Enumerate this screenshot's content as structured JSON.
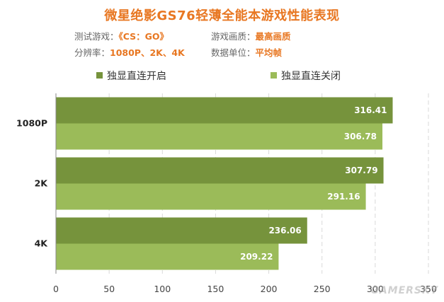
{
  "title": "微星绝影GS76轻薄全能本游戏性能表现",
  "info": {
    "game_label": "测试游戏：",
    "game_value": "《CS：GO》",
    "quality_label": "游戏画质：",
    "quality_value": "最高画质",
    "resolution_label": "分辨率：",
    "resolution_value": "1080P、2K、4K",
    "unit_label": "数据单位：",
    "unit_value": "平均帧"
  },
  "colors": {
    "on": "#76933c",
    "off": "#9bbb59",
    "accent": "#e87722"
  },
  "watermark": "GAMERSKY",
  "chart_data": {
    "type": "bar",
    "orientation": "horizontal",
    "categories": [
      "1080P",
      "2K",
      "4K"
    ],
    "series": [
      {
        "name": "独显直连开启",
        "values": [
          316.41,
          307.79,
          236.06
        ]
      },
      {
        "name": "独显直连关闭",
        "values": [
          306.78,
          291.16,
          209.22
        ]
      }
    ],
    "xlim": [
      0,
      350
    ],
    "xticks": [
      0,
      50,
      100,
      150,
      200,
      250,
      300,
      350
    ],
    "grid": true,
    "legend": "top"
  }
}
